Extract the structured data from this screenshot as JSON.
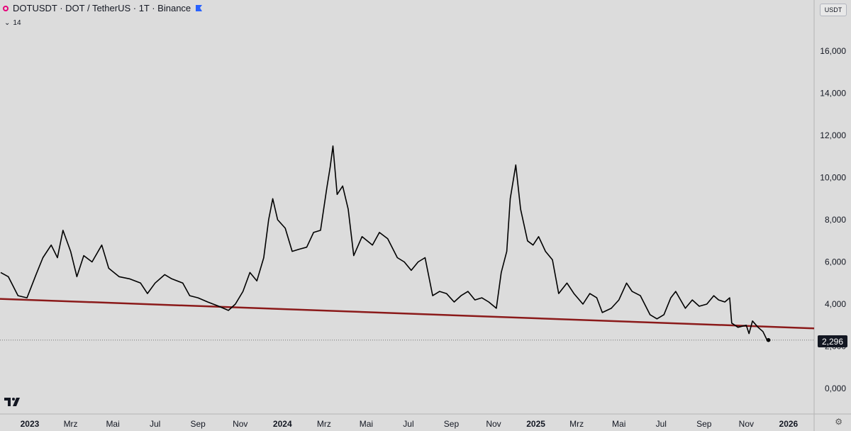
{
  "header": {
    "title": "DOTUSDT · DOT / TetherUS · 1T · Binance",
    "indicator_value": "14"
  },
  "currency_label": "USDT",
  "last_price_label": "2,296",
  "colors": {
    "line": "#000000",
    "trendline": "#8b1a1a",
    "background": "#dcdcdc",
    "axis_text": "#131722"
  },
  "chart_data": {
    "type": "line",
    "title": "DOTUSDT · DOT / TetherUS · 1T · Binance",
    "ylim": [
      0,
      17.5
    ],
    "yticks": [
      0,
      2,
      4,
      6,
      8,
      10,
      12,
      14,
      16
    ],
    "ytick_labels": [
      "0,000",
      "2,000",
      "4,000",
      "6,000",
      "8,000",
      "10,000",
      "12,000",
      "14,000",
      "16,000"
    ],
    "xticks": [
      {
        "date": "2023-01-01",
        "label": "2023"
      },
      {
        "date": "2023-03-01",
        "label": "Mrz"
      },
      {
        "date": "2023-05-01",
        "label": "Mai"
      },
      {
        "date": "2023-07-01",
        "label": "Jul"
      },
      {
        "date": "2023-09-01",
        "label": "Sep"
      },
      {
        "date": "2023-11-01",
        "label": "Nov"
      },
      {
        "date": "2024-01-01",
        "label": "2024"
      },
      {
        "date": "2024-03-01",
        "label": "Mrz"
      },
      {
        "date": "2024-05-01",
        "label": "Mai"
      },
      {
        "date": "2024-07-01",
        "label": "Jul"
      },
      {
        "date": "2024-09-01",
        "label": "Sep"
      },
      {
        "date": "2024-11-01",
        "label": "Nov"
      },
      {
        "date": "2025-01-01",
        "label": "2025"
      },
      {
        "date": "2025-03-01",
        "label": "Mrz"
      },
      {
        "date": "2025-05-01",
        "label": "Mai"
      },
      {
        "date": "2025-07-01",
        "label": "Jul"
      },
      {
        "date": "2025-09-01",
        "label": "Sep"
      },
      {
        "date": "2025-11-01",
        "label": "Nov"
      },
      {
        "date": "2026-01-01",
        "label": "2026"
      }
    ],
    "xlim": [
      "2022-11-19",
      "2026-02-07"
    ],
    "series": [
      {
        "points": [
          [
            "2022-11-20",
            5.5
          ],
          [
            "2022-12-01",
            5.3
          ],
          [
            "2022-12-15",
            4.4
          ],
          [
            "2022-12-28",
            4.3
          ],
          [
            "2023-01-10",
            5.4
          ],
          [
            "2023-01-20",
            6.2
          ],
          [
            "2023-02-01",
            6.8
          ],
          [
            "2023-02-10",
            6.2
          ],
          [
            "2023-02-18",
            7.5
          ],
          [
            "2023-03-01",
            6.5
          ],
          [
            "2023-03-10",
            5.3
          ],
          [
            "2023-03-20",
            6.3
          ],
          [
            "2023-04-01",
            6.0
          ],
          [
            "2023-04-15",
            6.8
          ],
          [
            "2023-04-25",
            5.7
          ],
          [
            "2023-05-10",
            5.3
          ],
          [
            "2023-05-25",
            5.2
          ],
          [
            "2023-06-10",
            5.0
          ],
          [
            "2023-06-20",
            4.5
          ],
          [
            "2023-07-01",
            5.0
          ],
          [
            "2023-07-15",
            5.4
          ],
          [
            "2023-07-25",
            5.2
          ],
          [
            "2023-08-10",
            5.0
          ],
          [
            "2023-08-20",
            4.4
          ],
          [
            "2023-09-01",
            4.3
          ],
          [
            "2023-09-15",
            4.1
          ],
          [
            "2023-10-01",
            3.9
          ],
          [
            "2023-10-15",
            3.7
          ],
          [
            "2023-10-25",
            4.0
          ],
          [
            "2023-11-05",
            4.6
          ],
          [
            "2023-11-15",
            5.5
          ],
          [
            "2023-11-25",
            5.1
          ],
          [
            "2023-12-05",
            6.2
          ],
          [
            "2023-12-12",
            8.0
          ],
          [
            "2023-12-18",
            9.0
          ],
          [
            "2023-12-25",
            8.0
          ],
          [
            "2024-01-05",
            7.6
          ],
          [
            "2024-01-15",
            6.5
          ],
          [
            "2024-01-25",
            6.6
          ],
          [
            "2024-02-05",
            6.7
          ],
          [
            "2024-02-15",
            7.4
          ],
          [
            "2024-02-25",
            7.5
          ],
          [
            "2024-03-05",
            9.5
          ],
          [
            "2024-03-10",
            10.5
          ],
          [
            "2024-03-14",
            11.5
          ],
          [
            "2024-03-20",
            9.2
          ],
          [
            "2024-03-28",
            9.6
          ],
          [
            "2024-04-05",
            8.5
          ],
          [
            "2024-04-13",
            6.3
          ],
          [
            "2024-04-25",
            7.2
          ],
          [
            "2024-05-10",
            6.8
          ],
          [
            "2024-05-20",
            7.4
          ],
          [
            "2024-06-01",
            7.1
          ],
          [
            "2024-06-15",
            6.2
          ],
          [
            "2024-06-25",
            6.0
          ],
          [
            "2024-07-05",
            5.6
          ],
          [
            "2024-07-15",
            6.0
          ],
          [
            "2024-07-25",
            6.2
          ],
          [
            "2024-08-05",
            4.4
          ],
          [
            "2024-08-15",
            4.6
          ],
          [
            "2024-08-25",
            4.5
          ],
          [
            "2024-09-05",
            4.1
          ],
          [
            "2024-09-15",
            4.4
          ],
          [
            "2024-09-25",
            4.6
          ],
          [
            "2024-10-05",
            4.2
          ],
          [
            "2024-10-15",
            4.3
          ],
          [
            "2024-10-25",
            4.1
          ],
          [
            "2024-11-05",
            3.8
          ],
          [
            "2024-11-12",
            5.5
          ],
          [
            "2024-11-20",
            6.5
          ],
          [
            "2024-11-25",
            9.0
          ],
          [
            "2024-12-03",
            10.6
          ],
          [
            "2024-12-10",
            8.5
          ],
          [
            "2024-12-20",
            7.0
          ],
          [
            "2024-12-28",
            6.8
          ],
          [
            "2025-01-05",
            7.2
          ],
          [
            "2025-01-15",
            6.5
          ],
          [
            "2025-01-25",
            6.1
          ],
          [
            "2025-02-03",
            4.5
          ],
          [
            "2025-02-15",
            5.0
          ],
          [
            "2025-02-25",
            4.5
          ],
          [
            "2025-03-10",
            4.0
          ],
          [
            "2025-03-20",
            4.5
          ],
          [
            "2025-03-30",
            4.3
          ],
          [
            "2025-04-07",
            3.6
          ],
          [
            "2025-04-20",
            3.8
          ],
          [
            "2025-05-01",
            4.2
          ],
          [
            "2025-05-12",
            5.0
          ],
          [
            "2025-05-20",
            4.6
          ],
          [
            "2025-06-01",
            4.4
          ],
          [
            "2025-06-15",
            3.5
          ],
          [
            "2025-06-25",
            3.3
          ],
          [
            "2025-07-05",
            3.5
          ],
          [
            "2025-07-15",
            4.3
          ],
          [
            "2025-07-22",
            4.6
          ],
          [
            "2025-08-05",
            3.8
          ],
          [
            "2025-08-15",
            4.2
          ],
          [
            "2025-08-25",
            3.9
          ],
          [
            "2025-09-05",
            4.0
          ],
          [
            "2025-09-15",
            4.4
          ],
          [
            "2025-09-22",
            4.2
          ],
          [
            "2025-10-01",
            4.1
          ],
          [
            "2025-10-08",
            4.3
          ],
          [
            "2025-10-11",
            3.1
          ],
          [
            "2025-10-20",
            2.9
          ],
          [
            "2025-11-01",
            3.0
          ],
          [
            "2025-11-05",
            2.6
          ],
          [
            "2025-11-10",
            3.2
          ],
          [
            "2025-11-18",
            2.9
          ],
          [
            "2025-11-25",
            2.7
          ],
          [
            "2025-12-01",
            2.3
          ],
          [
            "2025-12-03",
            2.296
          ]
        ]
      }
    ],
    "trendline": {
      "start": [
        "2022-11-19",
        4.25
      ],
      "end": [
        "2026-02-07",
        2.85
      ]
    },
    "last_value": 2.296,
    "grid": false,
    "legend": "none"
  }
}
